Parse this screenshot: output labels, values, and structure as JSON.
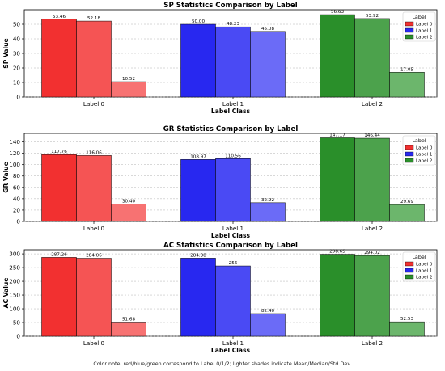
{
  "chart_data": [
    {
      "type": "bar",
      "title": "SP Statistics Comparison by Label",
      "xlabel": "Label Class",
      "ylabel": "SP Value",
      "ylim": [
        0,
        60
      ],
      "yticks": [
        0,
        10,
        20,
        30,
        40,
        50
      ],
      "categories": [
        "Label 0",
        "Label 1",
        "Label 2"
      ],
      "series": [
        {
          "values": [
            53.46,
            50.0,
            56.63
          ],
          "labels": [
            "53.46",
            "50.00",
            "56.63"
          ]
        },
        {
          "values": [
            52.18,
            48.23,
            53.92
          ],
          "labels": [
            "52.18",
            "48.23",
            "53.92"
          ]
        },
        {
          "values": [
            10.52,
            45.08,
            17.05
          ],
          "labels": [
            "10.52",
            "45.08",
            "17.05"
          ]
        }
      ],
      "grid": "horizontal dashed",
      "legend": {
        "title": "Label",
        "entries": [
          "Label 0",
          "Label 1",
          "Label 2"
        ],
        "placement": "upper-right"
      }
    },
    {
      "type": "bar",
      "title": "GR Statistics Comparison by Label",
      "xlabel": "Label Class",
      "ylabel": "GR Value",
      "ylim": [
        0,
        155
      ],
      "yticks": [
        0,
        20,
        40,
        60,
        80,
        100,
        120,
        140
      ],
      "categories": [
        "Label 0",
        "Label 1",
        "Label 2"
      ],
      "series": [
        {
          "values": [
            117.76,
            108.97,
            147.17
          ],
          "labels": [
            "117.76",
            "108.97",
            "147.17"
          ]
        },
        {
          "values": [
            116.06,
            110.56,
            146.44
          ],
          "labels": [
            "116.06",
            "110.56",
            "146.44"
          ]
        },
        {
          "values": [
            30.4,
            32.92,
            29.69
          ],
          "labels": [
            "30.40",
            "32.92",
            "29.69"
          ]
        }
      ],
      "grid": "horizontal dashed",
      "legend": {
        "title": "Label",
        "entries": [
          "Label 0",
          "Label 1",
          "Label 2"
        ],
        "placement": "upper-right"
      }
    },
    {
      "type": "bar",
      "title": "AC Statistics Comparison by Label",
      "xlabel": "Label Class",
      "ylabel": "AC Value",
      "ylim": [
        0,
        315
      ],
      "yticks": [
        0,
        50,
        100,
        150,
        200,
        250,
        300
      ],
      "categories": [
        "Label 0",
        "Label 1",
        "Label 2"
      ],
      "series": [
        {
          "values": [
            287.26,
            284.38,
            298.65
          ],
          "labels": [
            "287.26",
            "284.38",
            "298.65"
          ]
        },
        {
          "values": [
            284.06,
            256,
            294.02
          ],
          "labels": [
            "284.06",
            "256",
            "294.02"
          ]
        },
        {
          "values": [
            51.68,
            82.4,
            52.53
          ],
          "labels": [
            "51.68",
            "82.40",
            "52.53"
          ]
        }
      ],
      "grid": "horizontal dashed",
      "legend": {
        "title": "Label",
        "entries": [
          "Label 0",
          "Label 1",
          "Label 2"
        ],
        "placement": "upper-right"
      }
    }
  ],
  "colors": {
    "label_0": [
      "#f23030",
      "#f55454",
      "#f77272"
    ],
    "label_1": [
      "#2828f0",
      "#4a4af4",
      "#6b6bf7"
    ],
    "label_2": [
      "#2a8f2a",
      "#4ca24c",
      "#6cb66c"
    ]
  },
  "footnote": "Color note: red/blue/green correspond to Label 0/1/2; lighter shades indicate Mean/Median/Std Dev."
}
